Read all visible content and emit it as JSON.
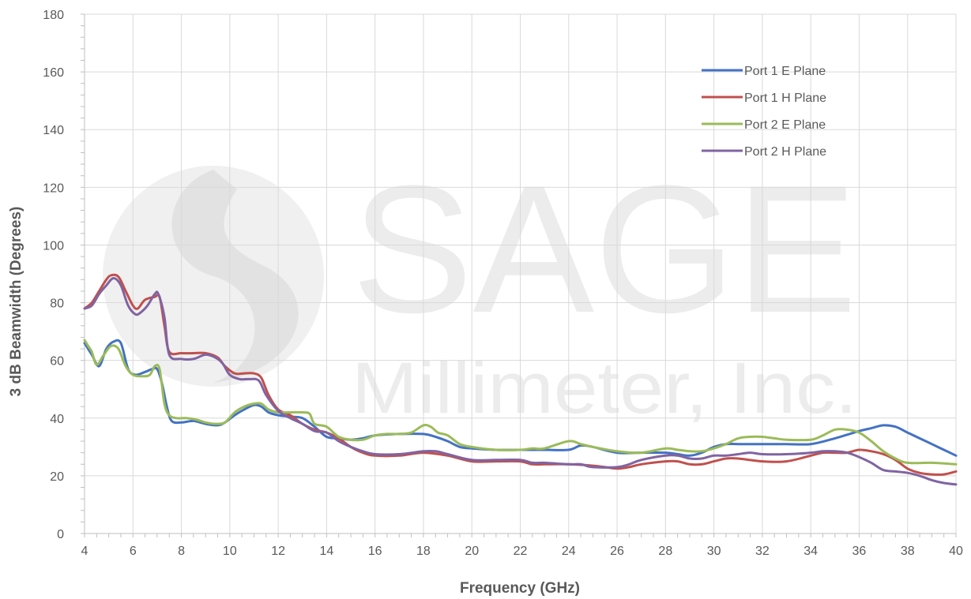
{
  "chart_data": {
    "type": "line",
    "title": "",
    "xlabel": "Frequency (GHz)",
    "ylabel": "3 dB Beamwidth (Degrees)",
    "xlim": [
      4,
      40
    ],
    "ylim": [
      0,
      180
    ],
    "xticks": [
      4,
      6,
      8,
      10,
      12,
      14,
      16,
      18,
      20,
      22,
      24,
      26,
      28,
      30,
      32,
      34,
      36,
      38,
      40
    ],
    "yticks": [
      0,
      20,
      40,
      60,
      80,
      100,
      120,
      140,
      160,
      180
    ],
    "grid": true,
    "legend_position": "top-right",
    "watermark": {
      "brand": "SAGE",
      "company": "Millimeter, Inc."
    },
    "series": [
      {
        "name": "Port 1 E Plane",
        "color": "#4472c4",
        "points": [
          [
            4,
            66
          ],
          [
            4.3,
            62
          ],
          [
            4.6,
            58
          ],
          [
            4.9,
            64
          ],
          [
            5.2,
            66.5
          ],
          [
            5.5,
            66
          ],
          [
            5.8,
            57
          ],
          [
            6.1,
            55
          ],
          [
            6.5,
            56
          ],
          [
            6.8,
            57
          ],
          [
            7.0,
            57
          ],
          [
            7.2,
            52
          ],
          [
            7.4,
            44
          ],
          [
            7.6,
            39
          ],
          [
            8,
            38.5
          ],
          [
            8.5,
            39
          ],
          [
            9,
            38
          ],
          [
            9.5,
            37.5
          ],
          [
            9.8,
            38.5
          ],
          [
            10.2,
            41
          ],
          [
            10.6,
            43
          ],
          [
            11,
            44.5
          ],
          [
            11.3,
            44
          ],
          [
            11.6,
            42
          ],
          [
            12,
            41
          ],
          [
            12.5,
            40.5
          ],
          [
            13,
            40
          ],
          [
            13.5,
            37
          ],
          [
            14,
            33.5
          ],
          [
            14.5,
            33
          ],
          [
            15,
            32.5
          ],
          [
            15.5,
            33
          ],
          [
            16,
            34
          ],
          [
            17,
            34.5
          ],
          [
            18,
            34.5
          ],
          [
            18.5,
            33.5
          ],
          [
            19,
            32
          ],
          [
            19.5,
            30
          ],
          [
            20,
            29.5
          ],
          [
            21,
            29
          ],
          [
            22,
            29
          ],
          [
            23,
            29
          ],
          [
            24,
            29
          ],
          [
            24.5,
            30.5
          ],
          [
            25,
            30
          ],
          [
            26,
            28
          ],
          [
            27,
            28
          ],
          [
            28,
            28
          ],
          [
            28.5,
            27.5
          ],
          [
            29,
            27
          ],
          [
            29.5,
            28
          ],
          [
            30,
            30
          ],
          [
            30.5,
            31
          ],
          [
            31,
            31
          ],
          [
            32,
            31
          ],
          [
            33,
            31
          ],
          [
            34,
            31
          ],
          [
            35,
            33
          ],
          [
            36,
            35.5
          ],
          [
            36.5,
            36.5
          ],
          [
            37,
            37.5
          ],
          [
            37.5,
            37
          ],
          [
            38,
            35
          ],
          [
            38.5,
            33
          ],
          [
            39,
            31
          ],
          [
            39.5,
            29
          ],
          [
            40,
            27
          ]
        ]
      },
      {
        "name": "Port 1 H Plane",
        "color": "#c0504d",
        "points": [
          [
            4,
            78
          ],
          [
            4.3,
            80
          ],
          [
            4.6,
            84
          ],
          [
            4.9,
            88
          ],
          [
            5.1,
            89.5
          ],
          [
            5.4,
            89
          ],
          [
            5.7,
            84
          ],
          [
            6.0,
            79
          ],
          [
            6.2,
            78
          ],
          [
            6.5,
            81
          ],
          [
            6.9,
            82
          ],
          [
            7.1,
            82
          ],
          [
            7.3,
            72
          ],
          [
            7.5,
            63
          ],
          [
            8,
            62.5
          ],
          [
            8.5,
            62.5
          ],
          [
            9,
            62.5
          ],
          [
            9.5,
            61
          ],
          [
            9.8,
            58
          ],
          [
            10.2,
            55.5
          ],
          [
            10.6,
            55.5
          ],
          [
            11,
            55.5
          ],
          [
            11.3,
            54
          ],
          [
            11.6,
            48
          ],
          [
            12,
            43
          ],
          [
            12.5,
            41
          ],
          [
            13,
            38
          ],
          [
            13.5,
            36
          ],
          [
            14,
            35
          ],
          [
            14.5,
            33
          ],
          [
            15,
            30
          ],
          [
            15.5,
            28
          ],
          [
            16,
            27
          ],
          [
            17,
            27
          ],
          [
            18,
            28
          ],
          [
            19,
            27
          ],
          [
            20,
            25
          ],
          [
            21,
            25
          ],
          [
            22,
            25
          ],
          [
            22.5,
            24
          ],
          [
            23,
            24
          ],
          [
            24,
            24
          ],
          [
            25,
            23.5
          ],
          [
            25.5,
            23
          ],
          [
            26,
            22.5
          ],
          [
            26.5,
            23
          ],
          [
            27,
            24
          ],
          [
            28,
            25
          ],
          [
            28.5,
            25
          ],
          [
            29,
            24
          ],
          [
            29.5,
            24
          ],
          [
            30,
            25
          ],
          [
            30.5,
            26
          ],
          [
            31,
            26
          ],
          [
            32,
            25
          ],
          [
            33,
            25
          ],
          [
            34,
            27
          ],
          [
            34.5,
            28
          ],
          [
            35,
            28
          ],
          [
            35.5,
            28
          ],
          [
            36,
            29
          ],
          [
            36.5,
            28.5
          ],
          [
            37,
            27.5
          ],
          [
            37.5,
            25.5
          ],
          [
            38,
            22.5
          ],
          [
            38.5,
            21
          ],
          [
            39,
            20.5
          ],
          [
            39.5,
            20.5
          ],
          [
            40,
            21.5
          ]
        ]
      },
      {
        "name": "Port 2 E Plane",
        "color": "#9bbb59",
        "points": [
          [
            4,
            67
          ],
          [
            4.15,
            65
          ],
          [
            4.3,
            63
          ],
          [
            4.5,
            58.5
          ],
          [
            4.8,
            62
          ],
          [
            5.1,
            65
          ],
          [
            5.4,
            64
          ],
          [
            5.7,
            58
          ],
          [
            6.0,
            55
          ],
          [
            6.4,
            54.5
          ],
          [
            6.7,
            55
          ],
          [
            6.9,
            58
          ],
          [
            7.1,
            57
          ],
          [
            7.3,
            45
          ],
          [
            7.5,
            41
          ],
          [
            7.8,
            40
          ],
          [
            8.2,
            40
          ],
          [
            8.6,
            39.5
          ],
          [
            9,
            38.5
          ],
          [
            9.4,
            38
          ],
          [
            9.8,
            38.5
          ],
          [
            10.2,
            42
          ],
          [
            10.6,
            44
          ],
          [
            11,
            45
          ],
          [
            11.3,
            45
          ],
          [
            11.6,
            43
          ],
          [
            12,
            42
          ],
          [
            12.5,
            42
          ],
          [
            13,
            42
          ],
          [
            13.3,
            41.5
          ],
          [
            13.5,
            38
          ],
          [
            14,
            37
          ],
          [
            14.5,
            33.5
          ],
          [
            15,
            32.5
          ],
          [
            15.5,
            32.5
          ],
          [
            16,
            34
          ],
          [
            16.5,
            34.5
          ],
          [
            17,
            34.5
          ],
          [
            17.5,
            35
          ],
          [
            18,
            37.5
          ],
          [
            18.3,
            37
          ],
          [
            18.6,
            35
          ],
          [
            19,
            34
          ],
          [
            19.5,
            31
          ],
          [
            20,
            30
          ],
          [
            21,
            29
          ],
          [
            22,
            29
          ],
          [
            22.5,
            29.5
          ],
          [
            23,
            29.5
          ],
          [
            24,
            32
          ],
          [
            24.5,
            31
          ],
          [
            25,
            30
          ],
          [
            26,
            28.5
          ],
          [
            27,
            28
          ],
          [
            28,
            29.5
          ],
          [
            28.5,
            29
          ],
          [
            29,
            28.5
          ],
          [
            29.5,
            28.5
          ],
          [
            30,
            29.5
          ],
          [
            30.5,
            31
          ],
          [
            31,
            33
          ],
          [
            31.5,
            33.5
          ],
          [
            32,
            33.5
          ],
          [
            32.5,
            33
          ],
          [
            33,
            32.5
          ],
          [
            34,
            32.5
          ],
          [
            34.5,
            34
          ],
          [
            35,
            36
          ],
          [
            35.5,
            36
          ],
          [
            36,
            35
          ],
          [
            36.5,
            32
          ],
          [
            37,
            28.5
          ],
          [
            37.5,
            26
          ],
          [
            38,
            24.5
          ],
          [
            39,
            24.5
          ],
          [
            40,
            24
          ]
        ]
      },
      {
        "name": "Port 2 H Plane",
        "color": "#8064a2",
        "points": [
          [
            4,
            78
          ],
          [
            4.3,
            79
          ],
          [
            4.6,
            83
          ],
          [
            4.9,
            86
          ],
          [
            5.2,
            88.5
          ],
          [
            5.5,
            86
          ],
          [
            5.8,
            79
          ],
          [
            6.1,
            76
          ],
          [
            6.3,
            76.5
          ],
          [
            6.6,
            79
          ],
          [
            6.9,
            83
          ],
          [
            7.05,
            83
          ],
          [
            7.3,
            75
          ],
          [
            7.5,
            62
          ],
          [
            8,
            60.5
          ],
          [
            8.5,
            60.5
          ],
          [
            9,
            62
          ],
          [
            9.4,
            61
          ],
          [
            9.7,
            59
          ],
          [
            10,
            55
          ],
          [
            10.4,
            53.5
          ],
          [
            10.8,
            53.5
          ],
          [
            11.2,
            53
          ],
          [
            11.5,
            48
          ],
          [
            12,
            42.5
          ],
          [
            12.5,
            40
          ],
          [
            13,
            38
          ],
          [
            13.5,
            35.5
          ],
          [
            14,
            35
          ],
          [
            14.5,
            32
          ],
          [
            15,
            30
          ],
          [
            15.5,
            28.5
          ],
          [
            16,
            27.5
          ],
          [
            17,
            27.5
          ],
          [
            18,
            28.5
          ],
          [
            18.5,
            28.5
          ],
          [
            19,
            27.5
          ],
          [
            20,
            25.5
          ],
          [
            21,
            25.5
          ],
          [
            22,
            25.5
          ],
          [
            22.5,
            24.5
          ],
          [
            23,
            24.5
          ],
          [
            24,
            24
          ],
          [
            24.5,
            24
          ],
          [
            25,
            23
          ],
          [
            26,
            23
          ],
          [
            26.5,
            24
          ],
          [
            27,
            25.5
          ],
          [
            28,
            27
          ],
          [
            28.5,
            27
          ],
          [
            29,
            26
          ],
          [
            29.5,
            26
          ],
          [
            30,
            27
          ],
          [
            30.5,
            27
          ],
          [
            31,
            27.5
          ],
          [
            31.5,
            28
          ],
          [
            32,
            27.5
          ],
          [
            33,
            27.5
          ],
          [
            34,
            28
          ],
          [
            34.5,
            28.5
          ],
          [
            35,
            28.5
          ],
          [
            35.5,
            28
          ],
          [
            36,
            26.5
          ],
          [
            36.5,
            24.5
          ],
          [
            37,
            22
          ],
          [
            37.5,
            21.5
          ],
          [
            38,
            21
          ],
          [
            38.5,
            20
          ],
          [
            39,
            18.5
          ],
          [
            39.5,
            17.5
          ],
          [
            40,
            17
          ]
        ]
      }
    ]
  }
}
